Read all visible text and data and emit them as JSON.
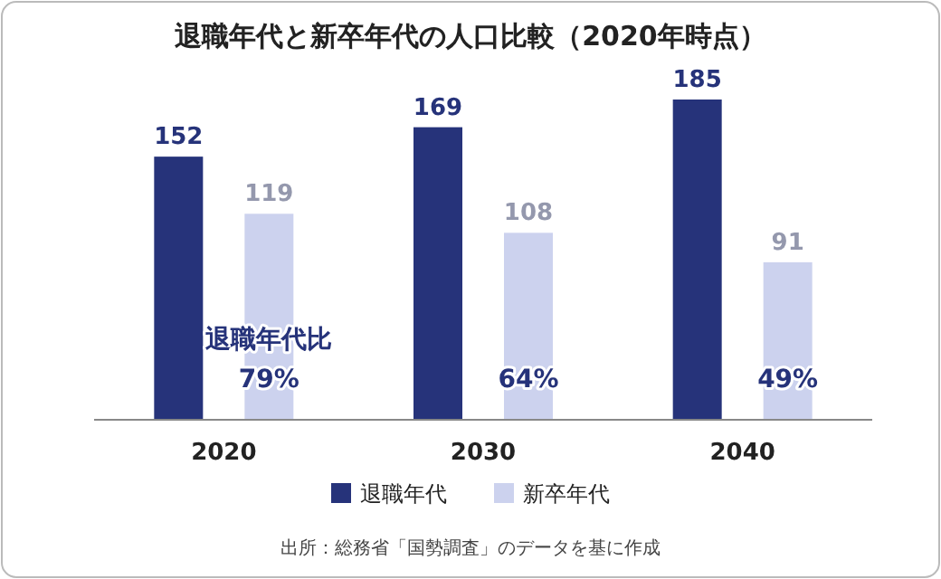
{
  "chart_data": {
    "type": "bar",
    "title": "退職年代と新卒年代の人口比較（2020年時点）",
    "categories": [
      "2020",
      "2030",
      "2040"
    ],
    "series": [
      {
        "name": "退職年代",
        "color": "#26337a",
        "values": [
          152,
          169,
          185
        ]
      },
      {
        "name": "新卒年代",
        "color": "#ccd2ee",
        "values": [
          119,
          108,
          91
        ]
      }
    ],
    "data_labels": true,
    "legend": "bottom",
    "annotations": [
      "退職年代比\n79%",
      "64%",
      "49%",
      "出所：総務省「国勢調査」のデータを基に作成"
    ]
  }
}
